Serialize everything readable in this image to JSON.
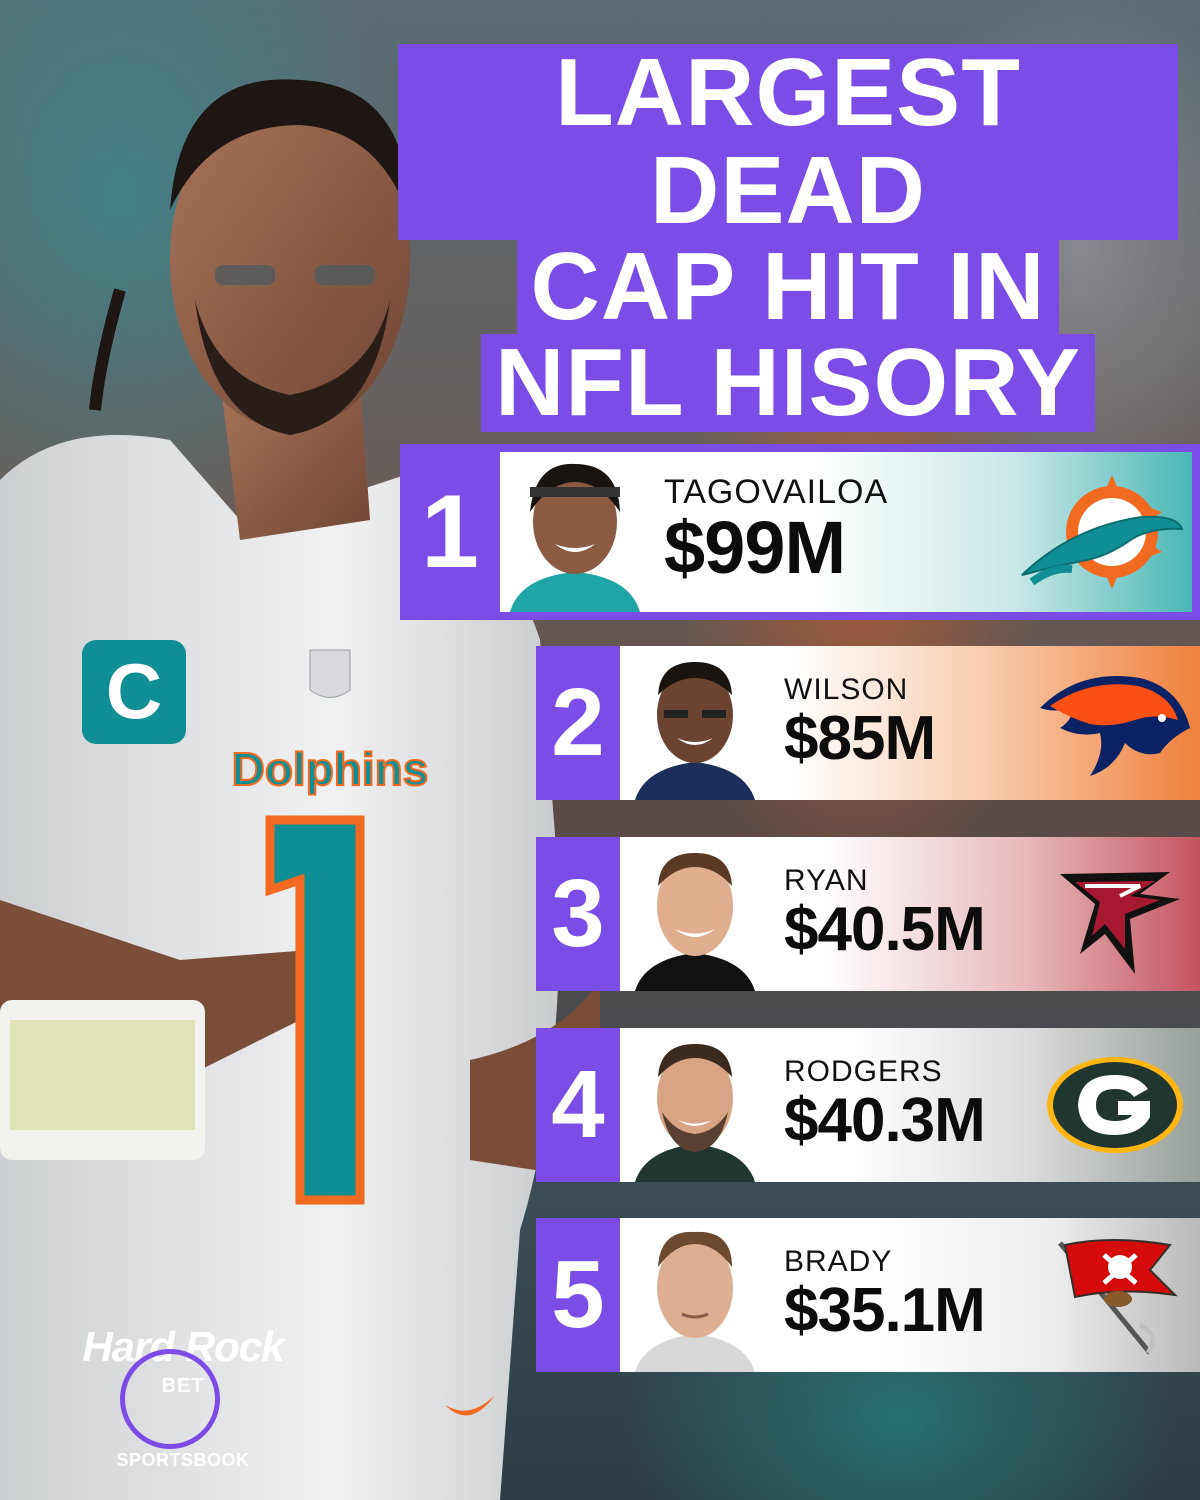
{
  "title": {
    "line1": "LARGEST DEAD",
    "line2": "CAP HIT IN",
    "line3": "NFL HISORY"
  },
  "rankings": [
    {
      "rank": "1",
      "name": "TAGOVAILOA",
      "value": "$99M",
      "team_logo": "dolphins-logo-icon"
    },
    {
      "rank": "2",
      "name": "WILSON",
      "value": "$85M",
      "team_logo": "broncos-logo-icon"
    },
    {
      "rank": "3",
      "name": "RYAN",
      "value": "$40.5M",
      "team_logo": "falcons-logo-icon"
    },
    {
      "rank": "4",
      "name": "RODGERS",
      "value": "$40.3M",
      "team_logo": "packers-logo-icon"
    },
    {
      "rank": "5",
      "name": "BRADY",
      "value": "$35.1M",
      "team_logo": "buccaneers-logo-icon"
    }
  ],
  "hero": {
    "jersey_wordmark": "Dolphins",
    "jersey_number": "1",
    "captain_patch": "C"
  },
  "brand": {
    "name": "Hard Rock",
    "bet": "BET",
    "sub": "SPORTSBOOK"
  },
  "colors": {
    "accent": "#7b4de6",
    "dolphins_aqua": "#00a1a4",
    "dolphins_orange": "#f26a21",
    "broncos_orange": "#fb4f14",
    "broncos_navy": "#0b2265",
    "falcons_red": "#a71930",
    "packers_green": "#203731",
    "packers_gold": "#ffb612",
    "bucs_red": "#d50a0a"
  }
}
